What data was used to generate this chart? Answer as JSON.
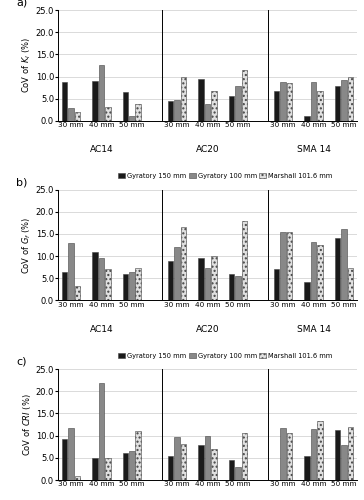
{
  "subplot_labels": [
    "a)",
    "b)",
    "c)"
  ],
  "ylabels": [
    "CoV of $K_I$ (%)",
    "CoV of $G_f$ (%)",
    "CoV of $CRI$ (%)"
  ],
  "ylim": [
    0,
    25
  ],
  "yticks": [
    0.0,
    5.0,
    10.0,
    15.0,
    20.0,
    25.0
  ],
  "groups": [
    "AC14",
    "AC20",
    "SMA 14"
  ],
  "group_keys": [
    "AC14",
    "AC20",
    "SMA14"
  ],
  "thicknesses": [
    "30 mm",
    "40 mm",
    "50 mm"
  ],
  "thickness_keys": [
    "30mm",
    "40mm",
    "50mm"
  ],
  "series_labels": [
    "Gyratory 150 mm",
    "Gyratory 100 mm",
    "Marshall 101.6 mm"
  ],
  "series_colors": [
    "#1a1a1a",
    "#888888",
    "#e0e0e0"
  ],
  "series_hatches": [
    "",
    "",
    "...."
  ],
  "data": {
    "KI": {
      "AC14": {
        "30mm": [
          8.8,
          2.8,
          2.0
        ],
        "40mm": [
          9.0,
          12.5,
          3.2
        ],
        "50mm": [
          6.5,
          1.0,
          3.8
        ]
      },
      "AC20": {
        "30mm": [
          4.5,
          4.8,
          10.0
        ],
        "40mm": [
          9.5,
          3.8,
          6.8
        ],
        "50mm": [
          5.5,
          7.8,
          11.5
        ]
      },
      "SMA14": {
        "30mm": [
          6.8,
          8.8,
          8.5
        ],
        "40mm": [
          1.0,
          8.8,
          6.8
        ],
        "50mm": [
          7.8,
          9.2,
          10.0
        ]
      }
    },
    "Gf": {
      "AC14": {
        "30mm": [
          6.3,
          13.0,
          3.2
        ],
        "40mm": [
          11.0,
          9.5,
          7.0
        ],
        "50mm": [
          6.0,
          6.3,
          7.2
        ]
      },
      "AC20": {
        "30mm": [
          9.0,
          12.0,
          16.5
        ],
        "40mm": [
          9.5,
          7.2,
          10.0
        ],
        "50mm": [
          6.0,
          5.5,
          18.0
        ]
      },
      "SMA14": {
        "30mm": [
          7.0,
          15.5,
          15.5
        ],
        "40mm": [
          4.2,
          13.2,
          12.5
        ],
        "50mm": [
          14.0,
          16.0,
          7.2
        ]
      }
    },
    "CRI": {
      "AC14": {
        "30mm": [
          9.2,
          11.8,
          1.0
        ],
        "40mm": [
          5.0,
          21.8,
          5.0
        ],
        "50mm": [
          6.0,
          6.5,
          11.0
        ]
      },
      "AC20": {
        "30mm": [
          5.5,
          9.8,
          8.2
        ],
        "40mm": [
          8.0,
          10.0,
          7.0
        ],
        "50mm": [
          4.5,
          3.0,
          10.5
        ]
      },
      "SMA14": {
        "30mm": [
          0.0,
          11.8,
          10.5
        ],
        "40mm": [
          5.5,
          11.5,
          13.2
        ],
        "50mm": [
          11.3,
          7.8,
          12.0
        ]
      }
    }
  },
  "edgecolor": "#444444"
}
